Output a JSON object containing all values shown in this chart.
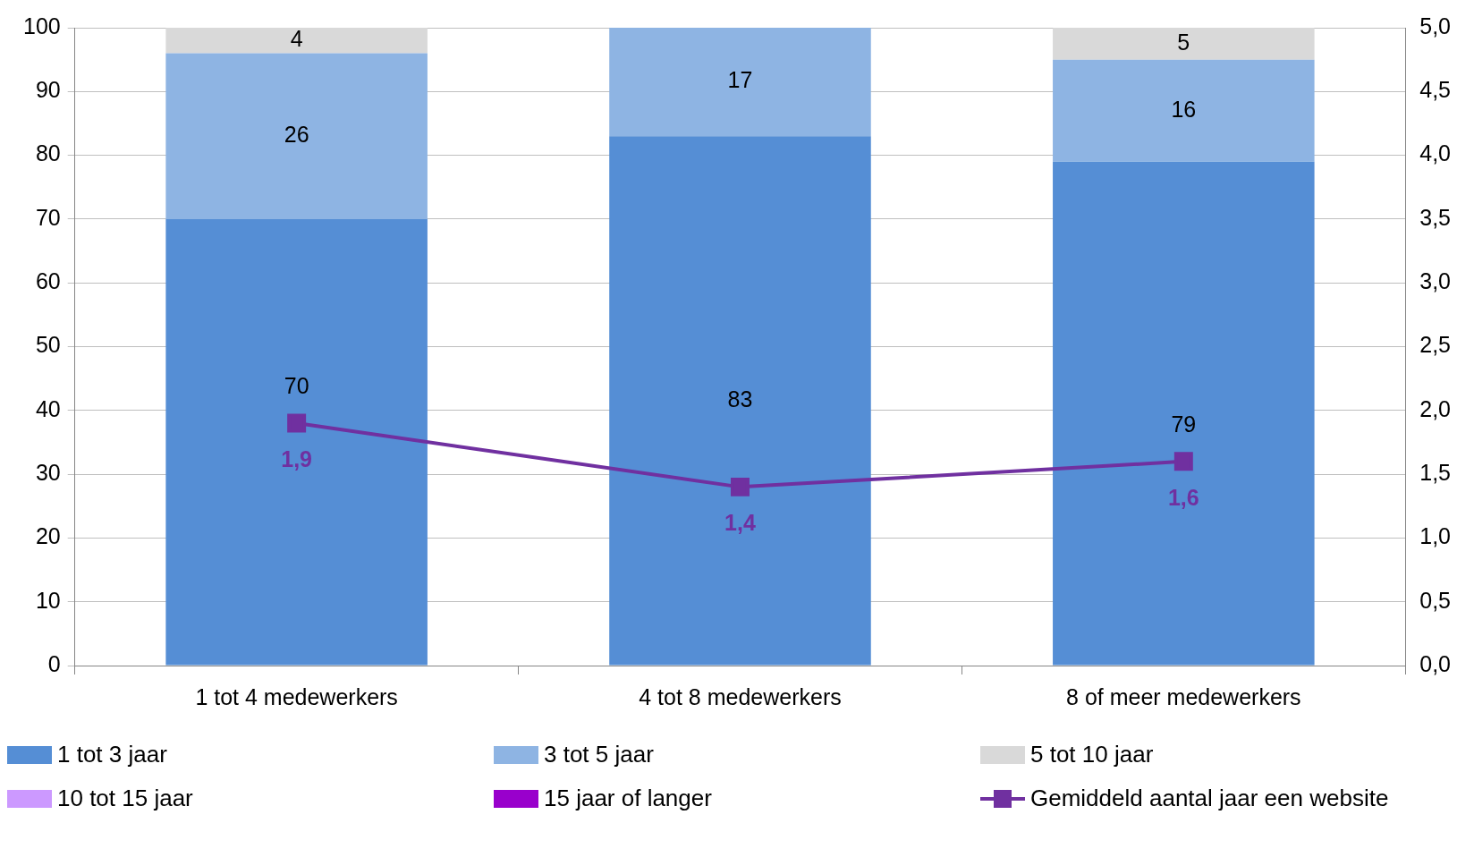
{
  "chart_data": {
    "type": "bar",
    "stacked": true,
    "categories": [
      "1 tot 4 medewerkers",
      "4 tot 8 medewerkers",
      "8 of meer medewerkers"
    ],
    "series": [
      {
        "name": "1 tot 3 jaar",
        "color": "#558ed5",
        "values": [
          70,
          83,
          79
        ]
      },
      {
        "name": "3 tot 5 jaar",
        "color": "#8eb4e3",
        "values": [
          26,
          17,
          16
        ]
      },
      {
        "name": "5 tot 10 jaar",
        "color": "#d9d9d9",
        "values": [
          4,
          null,
          5
        ]
      },
      {
        "name": "10 tot 15 jaar",
        "color": "#cc99ff",
        "values": [
          null,
          null,
          null
        ]
      },
      {
        "name": "15 jaar of langer",
        "color": "#9900cc",
        "values": [
          null,
          null,
          null
        ]
      },
      {
        "name": "Gemiddeld aantal jaar een website",
        "color": "#7030a0",
        "type": "line",
        "axis": "y2",
        "values": [
          1.9,
          1.4,
          1.6
        ],
        "value_labels": [
          "1,9",
          "1,4",
          "1,6"
        ]
      }
    ],
    "ylim": [
      0,
      100
    ],
    "yticks": [
      0,
      10,
      20,
      30,
      40,
      50,
      60,
      70,
      80,
      90,
      100
    ],
    "y2lim": [
      0,
      5
    ],
    "y2ticks": [
      {
        "value": 0,
        "label": "0,0"
      },
      {
        "value": 0.5,
        "label": "0,5"
      },
      {
        "value": 1,
        "label": "1,0"
      },
      {
        "value": 1.5,
        "label": "1,5"
      },
      {
        "value": 2,
        "label": "2,0"
      },
      {
        "value": 2.5,
        "label": "2,5"
      },
      {
        "value": 3,
        "label": "3,0"
      },
      {
        "value": 3.5,
        "label": "3,5"
      },
      {
        "value": 4,
        "label": "4,0"
      },
      {
        "value": 4.5,
        "label": "4,5"
      },
      {
        "value": 5,
        "label": "5,0"
      }
    ],
    "grid": "y",
    "legend": "bottom",
    "marker": "square",
    "line_style": "solid",
    "data_labels": true
  }
}
